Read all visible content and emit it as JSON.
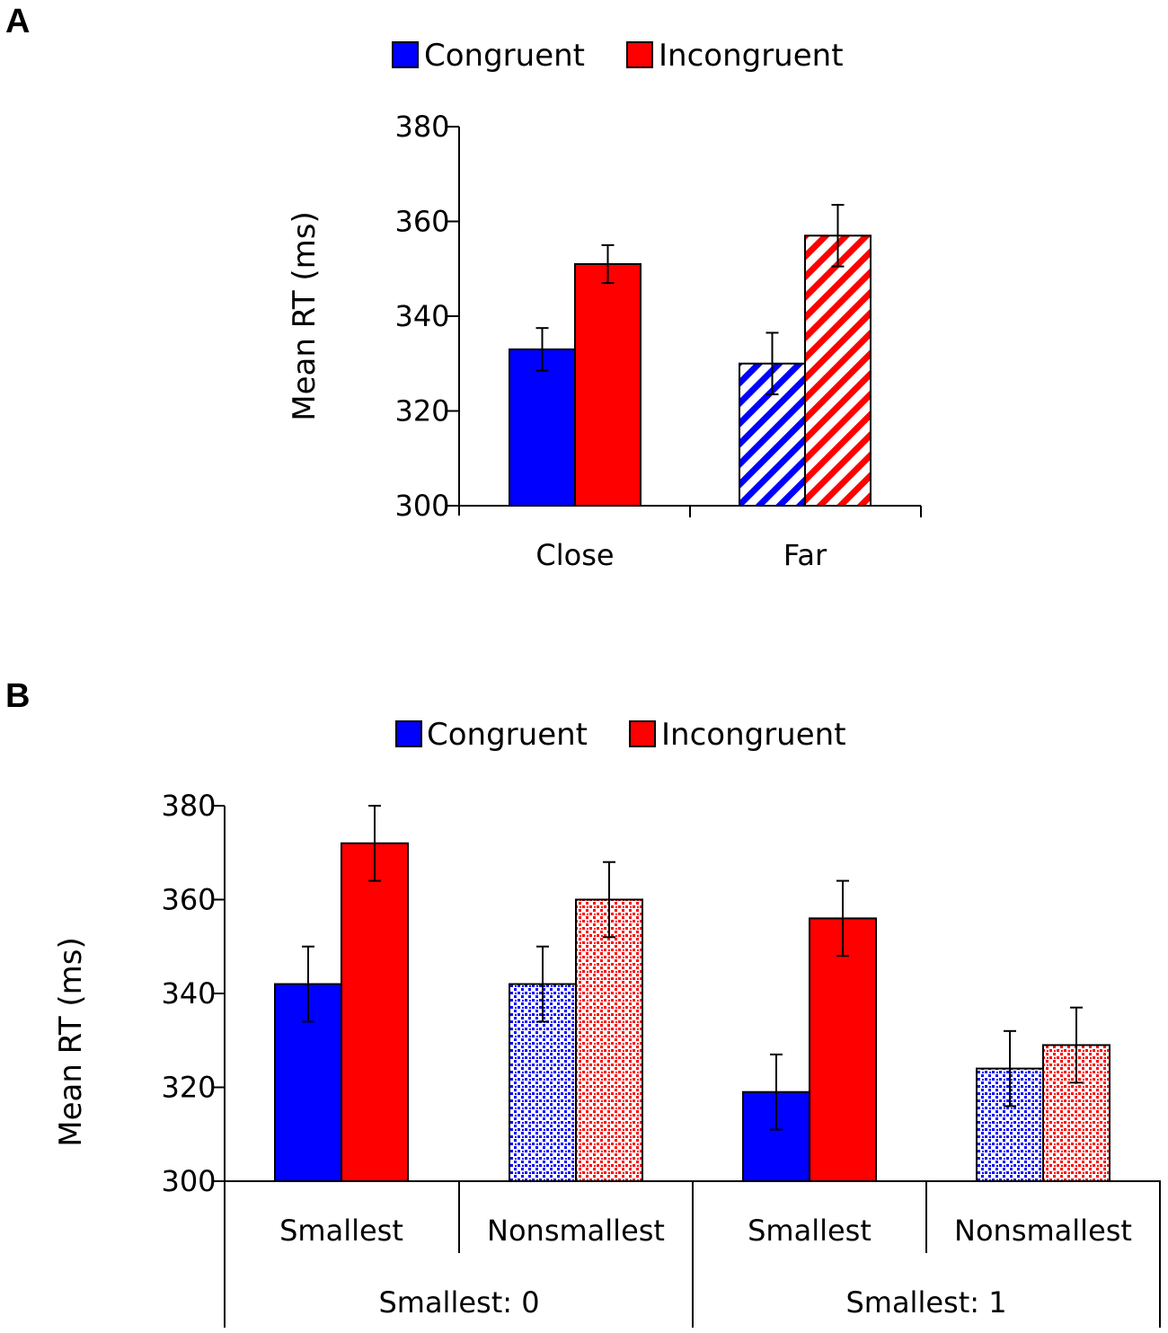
{
  "colors": {
    "congruent": "#0000ff",
    "incongruent": "#ff0000",
    "axis": "#000000",
    "background": "#ffffff"
  },
  "chart_data": [
    {
      "panel": "A",
      "type": "bar",
      "legend": [
        "Congruent",
        "Incongruent"
      ],
      "ylabel": "Mean RT (ms)",
      "xlabel": "",
      "ylim": [
        300,
        380
      ],
      "yticks": [
        300,
        320,
        340,
        360,
        380
      ],
      "categories": [
        "Close",
        "Far"
      ],
      "fills": [
        "solid",
        "hatched"
      ],
      "series": [
        {
          "name": "Congruent",
          "values": [
            333,
            330
          ],
          "errors": [
            4.5,
            6.5
          ]
        },
        {
          "name": "Incongruent",
          "values": [
            351,
            357
          ],
          "errors": [
            4,
            6.5
          ]
        }
      ]
    },
    {
      "panel": "B",
      "type": "bar",
      "legend": [
        "Congruent",
        "Incongruent"
      ],
      "ylabel": "Mean RT (ms)",
      "xlabel": "",
      "ylim": [
        300,
        380
      ],
      "yticks": [
        300,
        320,
        340,
        360,
        380
      ],
      "categories": [
        "Smallest",
        "Nonsmallest",
        "Smallest",
        "Nonsmallest"
      ],
      "groups": [
        {
          "label": "Smallest: 0",
          "categories": [
            0,
            1
          ]
        },
        {
          "label": "Smallest: 1",
          "categories": [
            2,
            3
          ]
        }
      ],
      "fills": [
        "solid",
        "dotted",
        "solid",
        "dotted"
      ],
      "series": [
        {
          "name": "Congruent",
          "values": [
            342,
            342,
            319,
            324
          ],
          "errors": [
            8,
            8,
            8,
            8
          ]
        },
        {
          "name": "Incongruent",
          "values": [
            372,
            360,
            356,
            329
          ],
          "errors": [
            8,
            8,
            8,
            8
          ]
        }
      ]
    }
  ]
}
